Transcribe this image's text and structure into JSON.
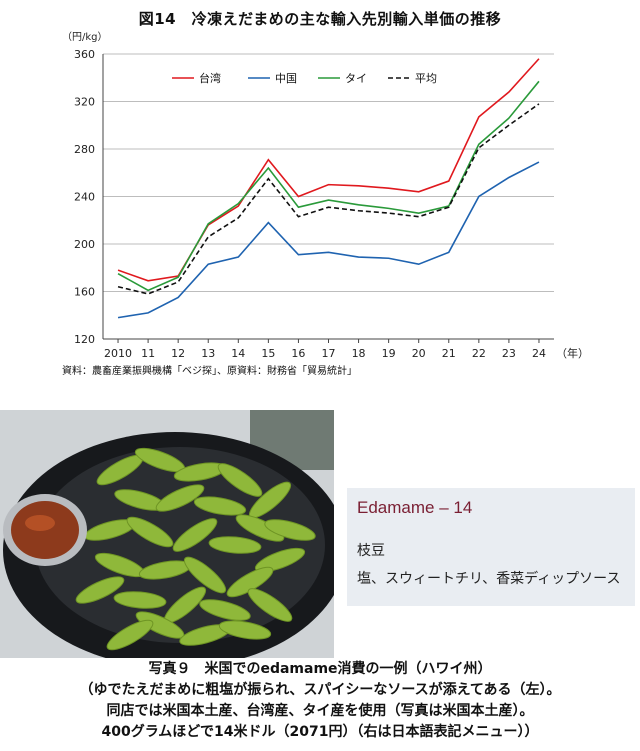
{
  "chart_data": {
    "type": "line",
    "title": "図14　冷凍えだまめの主な輸入先別輸入単価の推移",
    "ylabel": "（円/kg）",
    "xlabel": "（年）",
    "ylim": [
      120,
      360
    ],
    "yticks": [
      120,
      160,
      200,
      240,
      280,
      320,
      360
    ],
    "categories": [
      "2010",
      "11",
      "12",
      "13",
      "14",
      "15",
      "16",
      "17",
      "18",
      "19",
      "20",
      "21",
      "22",
      "23",
      "24"
    ],
    "grid": "horizontal",
    "legend": "top",
    "series": [
      {
        "name": "台湾",
        "color": "#e0191e",
        "dash": false,
        "values": [
          178,
          169,
          173,
          216,
          232,
          271,
          240,
          250,
          249,
          247,
          244,
          253,
          307,
          328,
          356
        ]
      },
      {
        "name": "中国",
        "color": "#1f63b0",
        "dash": false,
        "values": [
          138,
          142,
          155,
          183,
          189,
          218,
          191,
          193,
          189,
          188,
          183,
          193,
          240,
          256,
          269
        ]
      },
      {
        "name": "タイ",
        "color": "#2a9a3a",
        "dash": false,
        "values": [
          175,
          161,
          172,
          217,
          234,
          264,
          231,
          237,
          233,
          230,
          226,
          232,
          284,
          306,
          337
        ]
      },
      {
        "name": "平均",
        "color": "#111111",
        "dash": true,
        "values": [
          164,
          158,
          168,
          206,
          222,
          255,
          223,
          231,
          228,
          226,
          223,
          231,
          281,
          300,
          318
        ]
      }
    ],
    "source": "資料：農畜産業振興機構「ベジ探」、原資料：財務省「貿易統計」"
  },
  "menu": {
    "title": "Edamame – 14",
    "line1": "枝豆",
    "line2": "塩、スウィートチリ、香菜ディップソース"
  },
  "caption": {
    "line1": "写真９　米国でのedamame消費の一例（ハワイ州）",
    "line2": "（ゆでたえだまめに粗塩が振られ、スパイシーなソースが添えてある（左）。",
    "line3": "同店では米国本土産、台湾産、タイ産を使用（写真は米国本土産）。",
    "line4": "400グラムほどで14米ドル（2071円）（右は日本語表記メニュー））"
  }
}
